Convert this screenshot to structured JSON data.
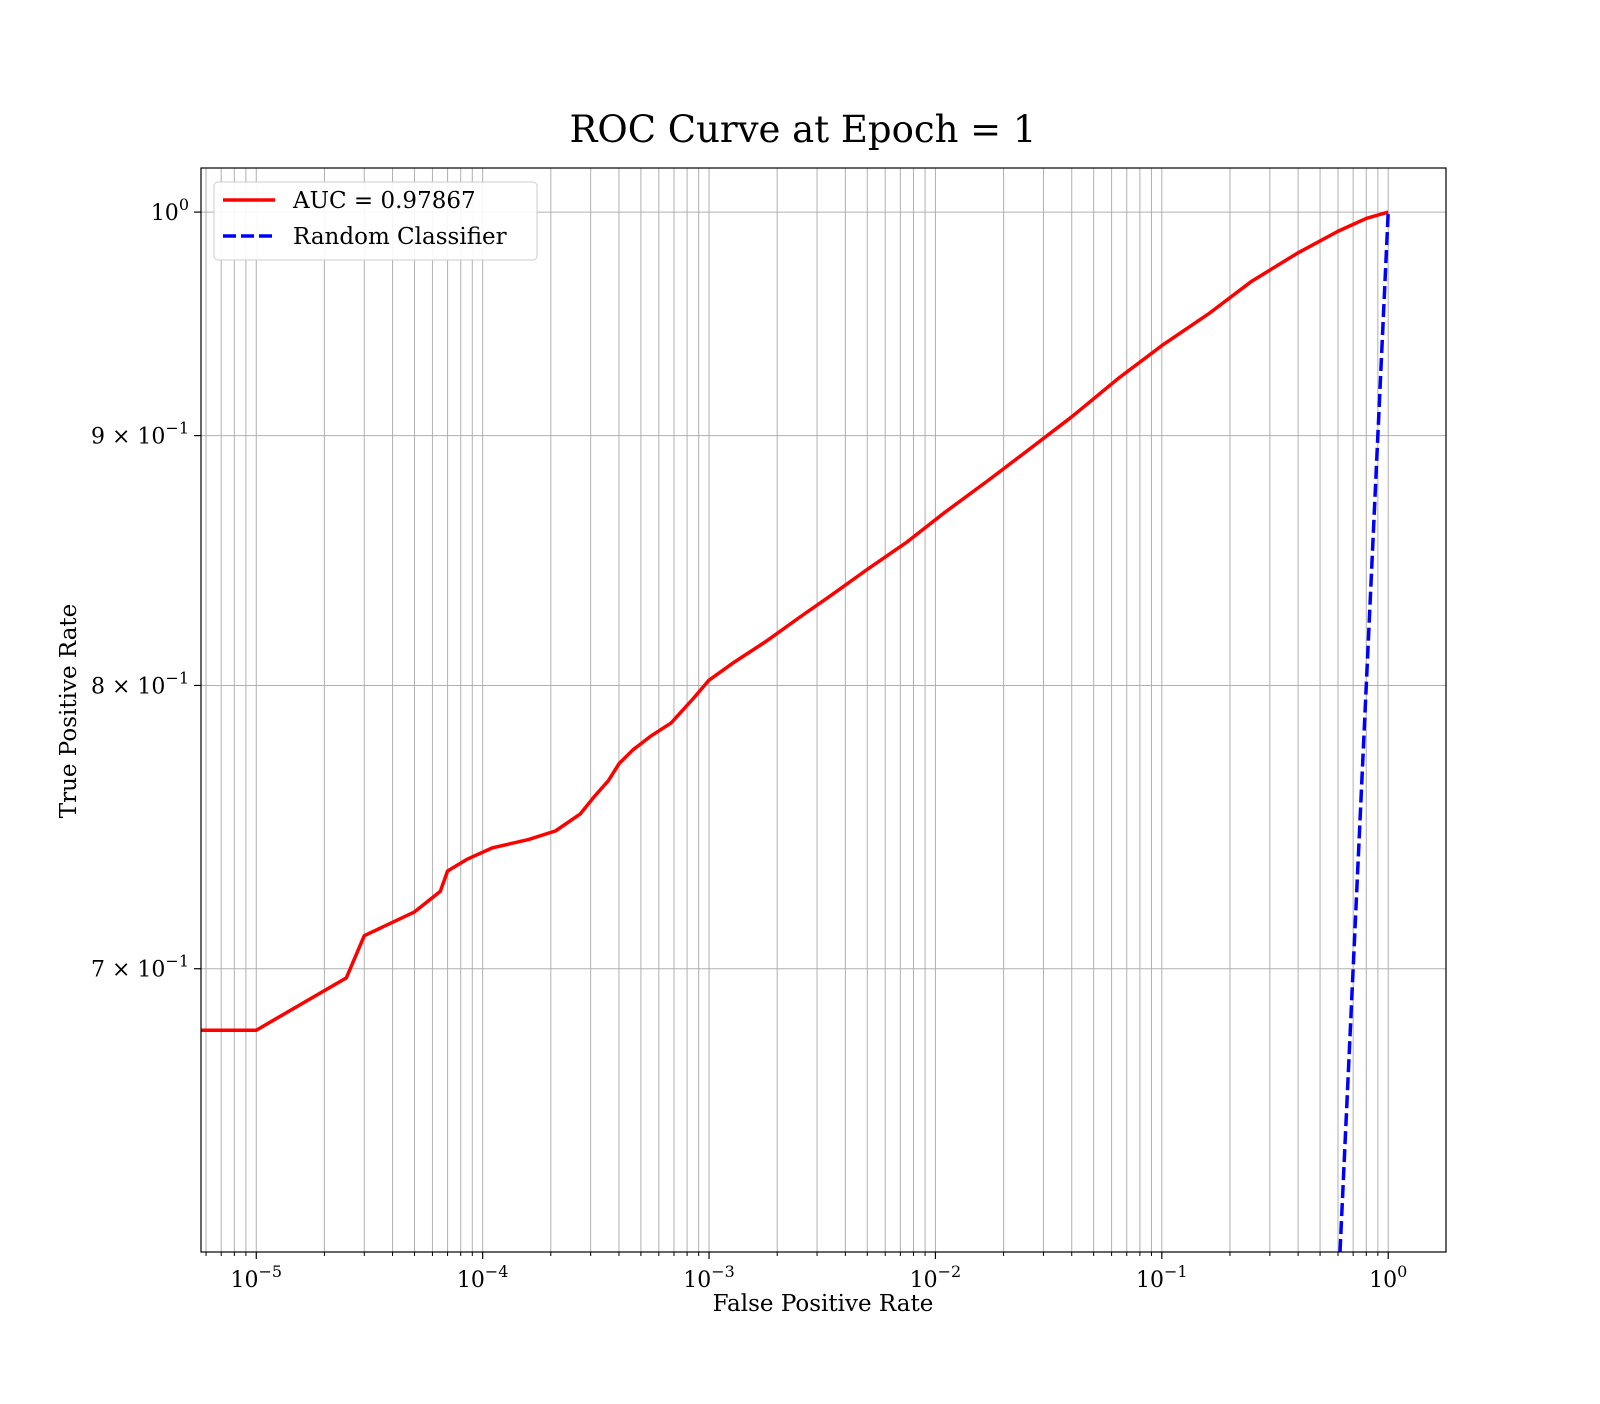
{
  "chart_data": {
    "type": "line",
    "title": "ROC Curve at Epoch = 1",
    "xlabel": "False Positive Rate",
    "ylabel": "True Positive Rate",
    "xscale": "log",
    "yscale": "log",
    "xlim": [
      5.7e-06,
      1.8
    ],
    "ylim": [
      0.6125,
      1.021
    ],
    "grid": "both (major and minor)",
    "legend_position": "top-left",
    "x_ticks": [
      {
        "value": 1e-05,
        "base": "10",
        "exp": "−5"
      },
      {
        "value": 0.0001,
        "base": "10",
        "exp": "−4"
      },
      {
        "value": 0.001,
        "base": "10",
        "exp": "−3"
      },
      {
        "value": 0.01,
        "base": "10",
        "exp": "−2"
      },
      {
        "value": 0.1,
        "base": "10",
        "exp": "−1"
      },
      {
        "value": 1,
        "base": "10",
        "exp": "0"
      }
    ],
    "y_ticks": [
      {
        "value": 1.0,
        "base": "10",
        "exp": "0"
      },
      {
        "value": 0.9,
        "base": "9 × 10",
        "exp": "−1"
      },
      {
        "value": 0.8,
        "base": "8 × 10",
        "exp": "−1"
      },
      {
        "value": 0.7,
        "base": "7 × 10",
        "exp": "−1"
      }
    ],
    "series": [
      {
        "name": "AUC = 0.97867",
        "color": "#ff0000",
        "style": "solid",
        "x": [
          5.7e-06,
          1e-05,
          2.5e-05,
          3e-05,
          5e-05,
          6.5e-05,
          7e-05,
          8.5e-05,
          0.00011,
          0.00016,
          0.00021,
          0.00027,
          0.00031,
          0.00036,
          0.0004,
          0.00046,
          0.00055,
          0.00068,
          0.00085,
          0.001,
          0.0013,
          0.0018,
          0.0025,
          0.0035,
          0.005,
          0.0075,
          0.011,
          0.017,
          0.025,
          0.04,
          0.065,
          0.1,
          0.16,
          0.25,
          0.4,
          0.6,
          0.8,
          1.0
        ],
        "y": [
          0.68,
          0.68,
          0.697,
          0.711,
          0.719,
          0.726,
          0.733,
          0.737,
          0.741,
          0.744,
          0.747,
          0.753,
          0.759,
          0.765,
          0.771,
          0.776,
          0.781,
          0.786,
          0.795,
          0.802,
          0.809,
          0.817,
          0.826,
          0.835,
          0.845,
          0.856,
          0.868,
          0.881,
          0.893,
          0.908,
          0.925,
          0.939,
          0.953,
          0.968,
          0.981,
          0.991,
          0.997,
          1.0
        ]
      },
      {
        "name": "Random Classifier",
        "color": "#0000ff",
        "style": "dashed",
        "x": [
          0.6125,
          1.0
        ],
        "y": [
          0.6125,
          1.0
        ]
      }
    ]
  }
}
